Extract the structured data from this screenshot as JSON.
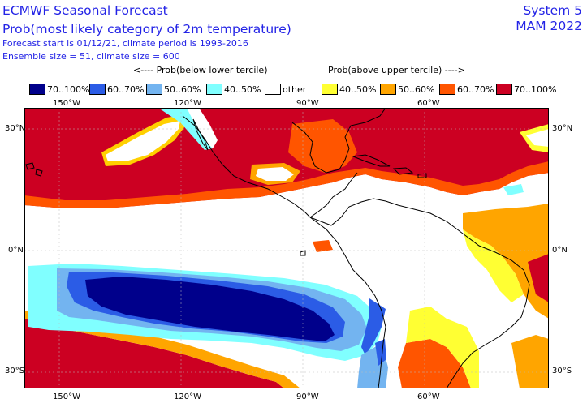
{
  "header": {
    "title": "ECMWF Seasonal Forecast",
    "subtitle": "Prob(most likely category of 2m temperature)",
    "forecast_info": "Forecast start is 01/12/21, climate period is 1993-2016",
    "ensemble_info": "Ensemble size = 51, climate size = 600",
    "system": "System 5",
    "season": "MAM 2022"
  },
  "legend": {
    "below_caption": "<---- Prob(below lower tercile)",
    "above_caption": "Prob(above upper tercile) ---->",
    "items": [
      {
        "label": "70..100%",
        "color": "#00008b"
      },
      {
        "label": "60..70%",
        "color": "#2b5ce6"
      },
      {
        "label": "50..60%",
        "color": "#73b4f0"
      },
      {
        "label": "40..50%",
        "color": "#80ffff"
      },
      {
        "label": "other",
        "color": "#ffffff"
      },
      {
        "label": "40..50%",
        "color": "#ffff33"
      },
      {
        "label": "50..60%",
        "color": "#ffa500"
      },
      {
        "label": "60..70%",
        "color": "#ff5500"
      },
      {
        "label": "70..100%",
        "color": "#cc0022"
      }
    ]
  },
  "axes": {
    "lon_labels": [
      "150°W",
      "120°W",
      "90°W",
      "60°W"
    ],
    "lat_labels": [
      "30°N",
      "0°N",
      "30°S"
    ]
  }
}
